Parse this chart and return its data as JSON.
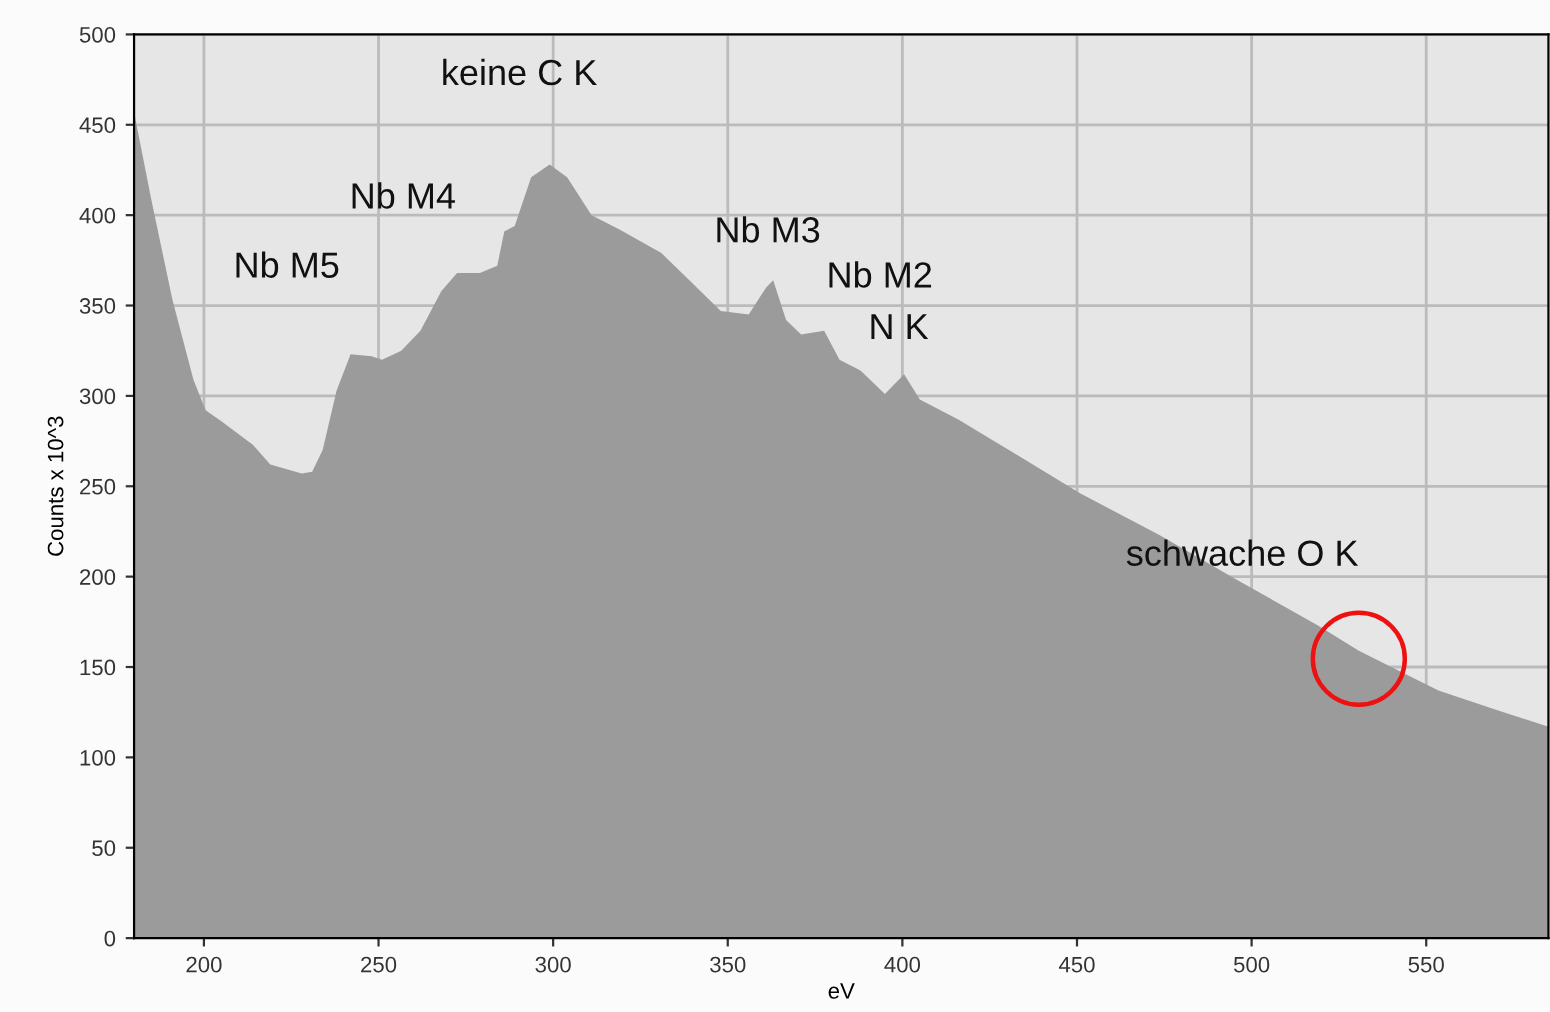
{
  "chart_data": {
    "type": "area",
    "xlabel": "eV",
    "ylabel": "Counts x 10^3",
    "xlim": [
      180,
      585
    ],
    "ylim": [
      0,
      500
    ],
    "xticks": [
      200,
      250,
      300,
      350,
      400,
      450,
      500,
      550
    ],
    "yticks": [
      0,
      50,
      100,
      150,
      200,
      250,
      300,
      350,
      400,
      450,
      500
    ],
    "grid": true,
    "legend": false,
    "series": [
      {
        "color": "#9b9b9b",
        "x": [
          180,
          185,
          191,
          197,
          200.5,
          205,
          214,
          219,
          228,
          231,
          234,
          238,
          242,
          248,
          251,
          256.5,
          262,
          268,
          272.5,
          279,
          284,
          286,
          289,
          293.7,
          299,
          304,
          311,
          319,
          331,
          339,
          348,
          356,
          361,
          363,
          366.7,
          371,
          377.6,
          382,
          388,
          395,
          400.5,
          405,
          416,
          428,
          451,
          473.6,
          496,
          519,
          530.7,
          542,
          553.5,
          570.6,
          585
        ],
        "values": [
          457,
          408,
          353,
          309,
          292,
          286,
          273,
          262,
          257,
          258,
          270,
          303,
          323,
          322,
          320,
          325,
          336,
          358,
          368,
          368,
          372,
          391,
          394,
          421,
          428,
          421,
          400,
          392,
          379,
          364,
          347,
          345,
          360,
          364,
          342,
          334,
          336,
          320,
          314,
          301,
          312,
          298,
          287,
          273,
          246,
          223,
          198,
          173,
          159,
          148,
          137,
          126,
          117
        ]
      }
    ],
    "annotations": [
      {
        "text": "keine C K",
        "x": 299,
        "y": 428
      },
      {
        "text": "Nb M4",
        "x": 284,
        "y": 372
      },
      {
        "text": "Nb M5",
        "x": 242,
        "y": 323
      },
      {
        "text": "Nb M3",
        "x": 363,
        "y": 364
      },
      {
        "text": "Nb M2",
        "x": 377.6,
        "y": 336
      },
      {
        "text": "N K",
        "x": 400.5,
        "y": 312
      },
      {
        "text": "schwache O K",
        "x": 530.7,
        "y": 159
      }
    ]
  }
}
